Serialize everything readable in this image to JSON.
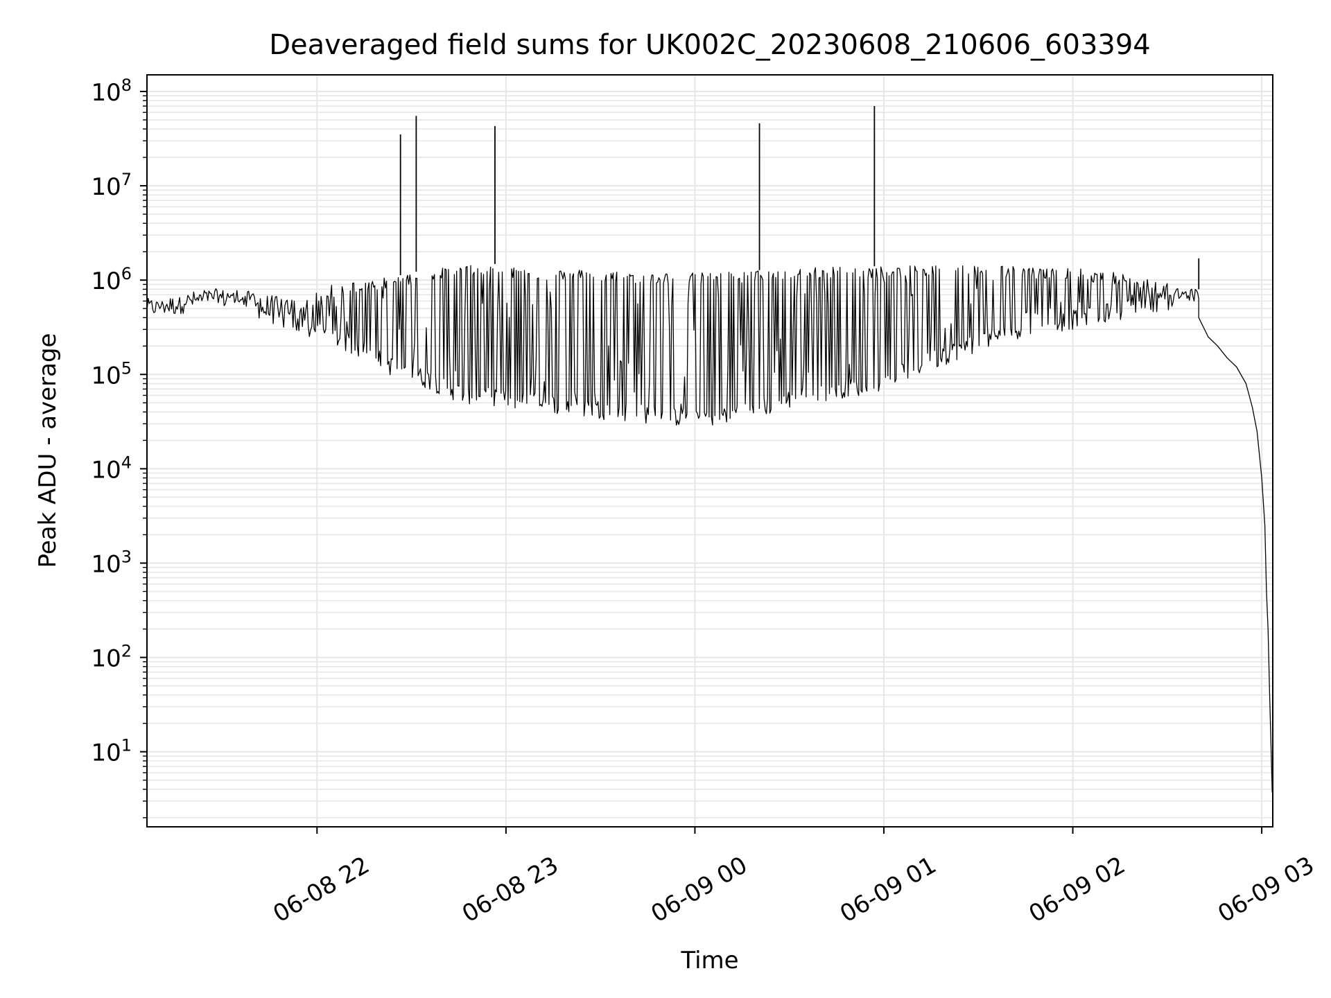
{
  "chart_data": {
    "type": "line",
    "title": "Deaveraged field sums for UK002C_20230608_210606_603394",
    "xlabel": "Time",
    "ylabel": "Peak ADU - average",
    "yscale": "log",
    "ylim": [
      1.6,
      150000000
    ],
    "xlim": [
      "2023-06-08 21:06:00",
      "2023-06-09 03:03:30"
    ],
    "grid": true,
    "line_color": "#000000",
    "grid_color": "#e6e6e6",
    "x_ticks": [
      {
        "t": "2023-06-08 22:00:00",
        "label": "06-08 22"
      },
      {
        "t": "2023-06-08 23:00:00",
        "label": "06-08 23"
      },
      {
        "t": "2023-06-09 00:00:00",
        "label": "06-09 00"
      },
      {
        "t": "2023-06-09 01:00:00",
        "label": "06-09 01"
      },
      {
        "t": "2023-06-09 02:00:00",
        "label": "06-09 02"
      },
      {
        "t": "2023-06-09 03:00:00",
        "label": "06-09 03"
      }
    ],
    "y_ticks": [
      {
        "v": 10,
        "base": "10",
        "exp": "1"
      },
      {
        "v": 100,
        "base": "10",
        "exp": "2"
      },
      {
        "v": 1000,
        "base": "10",
        "exp": "3"
      },
      {
        "v": 10000,
        "base": "10",
        "exp": "4"
      },
      {
        "v": 100000,
        "base": "10",
        "exp": "5"
      },
      {
        "v": 1000000,
        "base": "10",
        "exp": "6"
      },
      {
        "v": 10000000,
        "base": "10",
        "exp": "7"
      },
      {
        "v": 100000000,
        "base": "10",
        "exp": "8"
      }
    ],
    "series": [
      {
        "envelope": {
          "x": [
            "2023-06-08 21:06:00",
            "2023-06-08 21:15:00",
            "2023-06-08 21:25:00",
            "2023-06-08 21:35:00",
            "2023-06-08 21:45:00",
            "2023-06-08 21:55:00",
            "2023-06-08 22:05:00",
            "2023-06-08 22:15:00",
            "2023-06-08 22:25:00",
            "2023-06-08 22:35:00",
            "2023-06-08 22:45:00",
            "2023-06-08 22:55:00",
            "2023-06-08 23:05:00",
            "2023-06-08 23:15:00",
            "2023-06-08 23:25:00",
            "2023-06-08 23:35:00",
            "2023-06-08 23:45:00",
            "2023-06-08 23:55:00",
            "2023-06-09 00:05:00",
            "2023-06-09 00:15:00",
            "2023-06-09 00:25:00",
            "2023-06-09 00:35:00",
            "2023-06-09 00:45:00",
            "2023-06-09 00:55:00",
            "2023-06-09 01:05:00",
            "2023-06-09 01:15:00",
            "2023-06-09 01:25:00",
            "2023-06-09 01:35:00",
            "2023-06-09 01:45:00",
            "2023-06-09 01:55:00",
            "2023-06-09 02:05:00",
            "2023-06-09 02:15:00",
            "2023-06-09 02:25:00",
            "2023-06-09 02:35:00",
            "2023-06-09 02:40:00"
          ],
          "y_high": [
            600000,
            650000,
            750000,
            800000,
            700000,
            600000,
            900000,
            1000000,
            1100000,
            1300000,
            1400000,
            1500000,
            1400000,
            1300000,
            1300000,
            1250000,
            1200000,
            1200000,
            1200000,
            1250000,
            1300000,
            1350000,
            1400000,
            1400000,
            1400000,
            1450000,
            1450000,
            1450000,
            1400000,
            1350000,
            1300000,
            1200000,
            1000000,
            850000,
            800000
          ],
          "y_low": [
            400000,
            420000,
            520000,
            480000,
            350000,
            250000,
            200000,
            140000,
            90000,
            70000,
            50000,
            45000,
            42000,
            38000,
            35000,
            32000,
            30000,
            28000,
            28000,
            32000,
            38000,
            48000,
            55000,
            60000,
            80000,
            110000,
            150000,
            200000,
            250000,
            280000,
            320000,
            380000,
            450000,
            500000,
            550000
          ]
        },
        "spikes": [
          {
            "x": "2023-06-08 22:26:30",
            "y": 35000000
          },
          {
            "x": "2023-06-08 22:31:30",
            "y": 55000000
          },
          {
            "x": "2023-06-08 22:56:30",
            "y": 43000000
          },
          {
            "x": "2023-06-09 00:20:30",
            "y": 46000000
          },
          {
            "x": "2023-06-09 00:57:00",
            "y": 70000000
          },
          {
            "x": "2023-06-09 02:40:00",
            "y": 1700000
          }
        ],
        "tail": {
          "x": [
            "2023-06-09 02:40:00",
            "2023-06-09 02:43:00",
            "2023-06-09 02:46:00",
            "2023-06-09 02:49:00",
            "2023-06-09 02:52:00",
            "2023-06-09 02:55:00",
            "2023-06-09 02:57:00",
            "2023-06-09 02:58:30",
            "2023-06-09 03:00:00",
            "2023-06-09 03:01:00",
            "2023-06-09 03:01:30",
            "2023-06-09 03:02:00",
            "2023-06-09 03:02:30",
            "2023-06-09 03:03:00",
            "2023-06-09 03:03:20"
          ],
          "y": [
            400000,
            250000,
            200000,
            150000,
            120000,
            80000,
            45000,
            25000,
            8000,
            2500,
            500,
            200,
            40,
            10,
            3.7
          ]
        }
      }
    ]
  }
}
